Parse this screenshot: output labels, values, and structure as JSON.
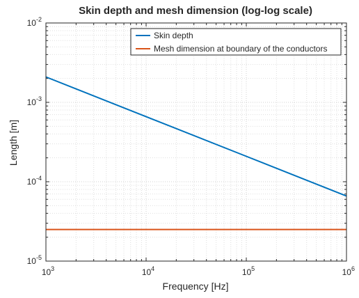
{
  "chart_data": {
    "type": "line",
    "title": "Skin depth and mesh dimension (log-log scale)",
    "xlabel": "Frequency [Hz]",
    "ylabel": "Length [m]",
    "xscale": "log",
    "yscale": "log",
    "xlim": [
      1000,
      1000000
    ],
    "ylim": [
      1e-05,
      0.01
    ],
    "grid": true,
    "minor_grid": true,
    "legend_position": "top-right",
    "x_ticks": [
      {
        "base": "10",
        "exp": "3",
        "value": 1000
      },
      {
        "base": "10",
        "exp": "4",
        "value": 10000
      },
      {
        "base": "10",
        "exp": "5",
        "value": 100000
      },
      {
        "base": "10",
        "exp": "6",
        "value": 1000000
      }
    ],
    "y_ticks": [
      {
        "base": "10",
        "exp": "-5",
        "value": 1e-05
      },
      {
        "base": "10",
        "exp": "-4",
        "value": 0.0001
      },
      {
        "base": "10",
        "exp": "-3",
        "value": 0.001
      },
      {
        "base": "10",
        "exp": "-2",
        "value": 0.01
      }
    ],
    "series": [
      {
        "name": "Skin depth",
        "color": "#0072bd",
        "x": [
          1000,
          10000,
          100000,
          1000000
        ],
        "y": [
          0.00209,
          0.00066,
          0.000209,
          6.6e-05
        ]
      },
      {
        "name": "Mesh dimension at boundary of the conductors",
        "color": "#d95319",
        "x": [
          1000,
          1000000
        ],
        "y": [
          2.5e-05,
          2.5e-05
        ]
      }
    ]
  }
}
